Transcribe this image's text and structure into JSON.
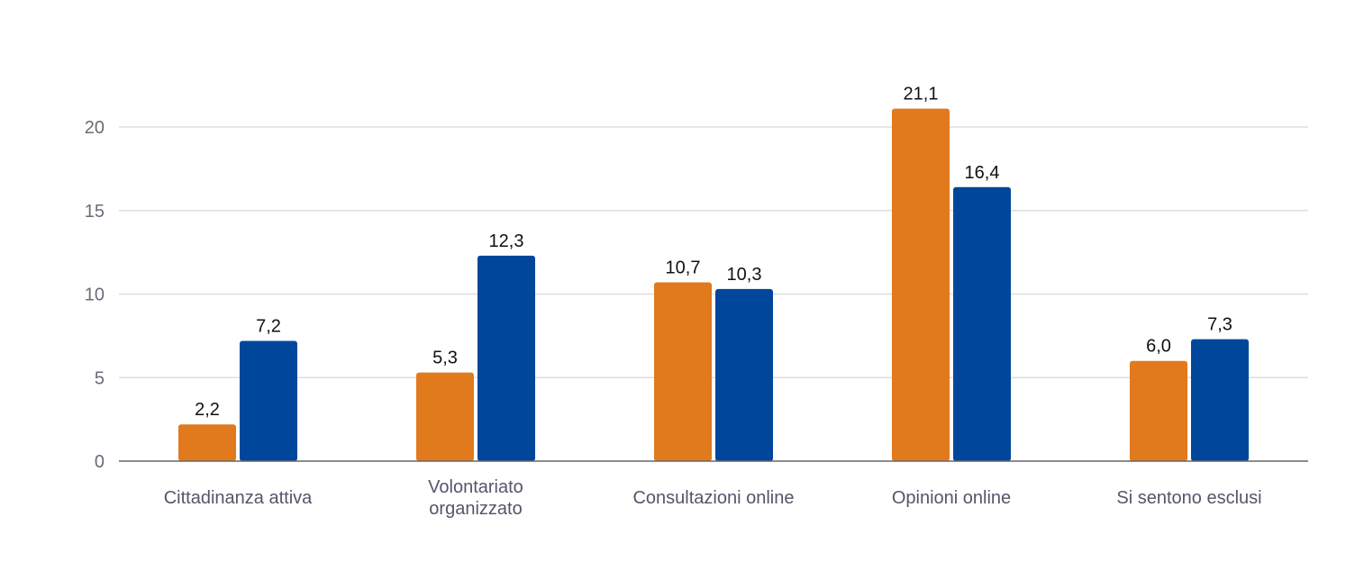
{
  "colors": {
    "series_1": "#E07A1C",
    "series_2": "#00479B"
  },
  "chart_data": {
    "type": "bar",
    "title": "",
    "xlabel": "",
    "ylabel": "",
    "ylim": [
      0,
      22
    ],
    "yticks": [
      "0",
      "5",
      "10",
      "15",
      "20"
    ],
    "grid": true,
    "legend": "none",
    "categories": [
      [
        "Cittadinanza attiva"
      ],
      [
        "Volontariato",
        "organizzato"
      ],
      [
        "Consultazioni online"
      ],
      [
        "Opinioni online"
      ],
      [
        "Si sentono esclusi"
      ]
    ],
    "series": [
      {
        "values": [
          2.2,
          5.3,
          10.7,
          21.1,
          6.0
        ],
        "labels": [
          "2,2",
          "5,3",
          "10,7",
          "21,1",
          "6,0"
        ]
      },
      {
        "values": [
          7.2,
          12.3,
          10.3,
          16.4,
          7.3
        ],
        "labels": [
          "7,2",
          "12,3",
          "10,3",
          "16,4",
          "7,3"
        ]
      }
    ]
  }
}
